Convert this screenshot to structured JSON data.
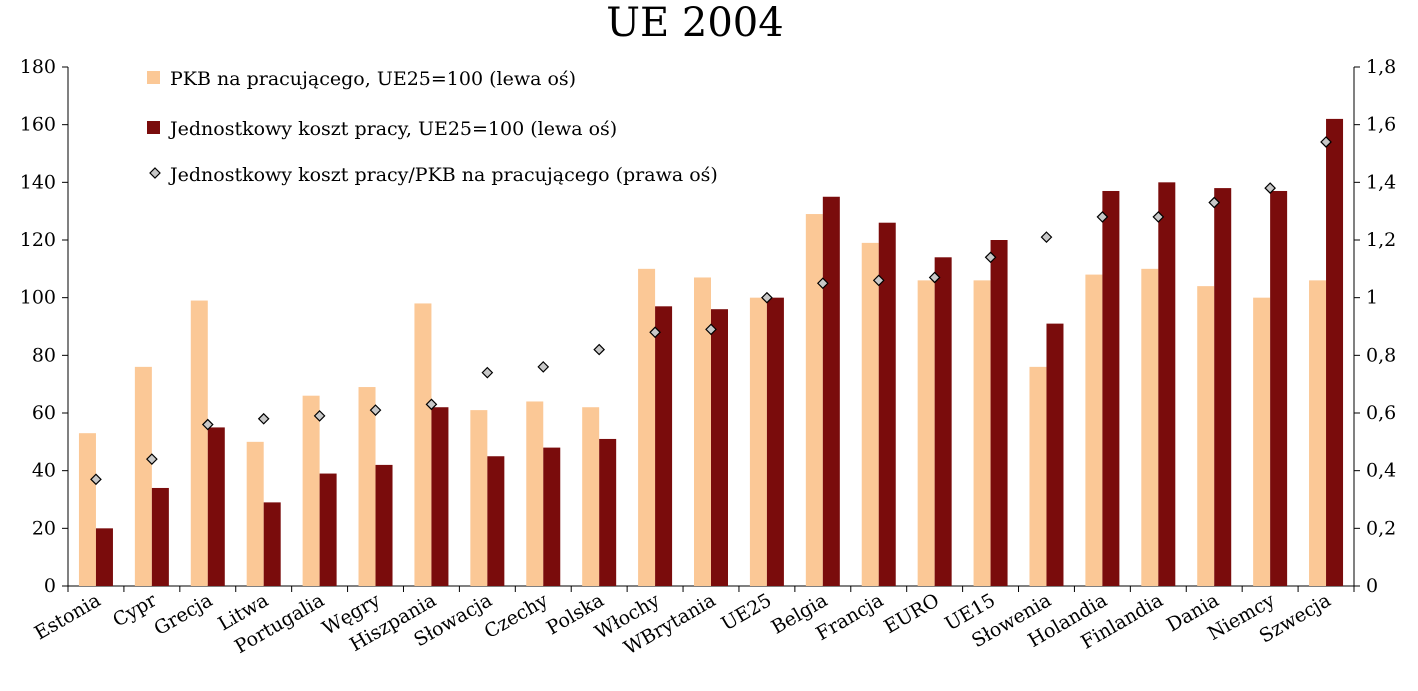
{
  "chart_data": {
    "type": "bar",
    "title": "UE 2004",
    "categories": [
      "Estonia",
      "Cypr",
      "Grecja",
      "Litwa",
      "Portugalia",
      "Węgry",
      "Hiszpania",
      "Słowacja",
      "Czechy",
      "Polska",
      "Włochy",
      "WBrytania",
      "UE25",
      "Belgia",
      "Francja",
      "EURO",
      "UE15",
      "Słowenia",
      "Holandia",
      "Finlandia",
      "Dania",
      "Niemcy",
      "Szwecja"
    ],
    "series": [
      {
        "name": "PKB na pracującego, UE25=100 (lewa oś)",
        "axis": "left",
        "color": "#fbc896",
        "values": [
          53,
          76,
          99,
          50,
          66,
          69,
          98,
          61,
          64,
          62,
          110,
          107,
          100,
          129,
          119,
          106,
          106,
          76,
          108,
          110,
          104,
          100,
          106
        ]
      },
      {
        "name": "Jednostkowy koszt pracy, UE25=100 (lewa oś)",
        "axis": "left",
        "color": "#7a0c0c",
        "values": [
          20,
          34,
          55,
          29,
          39,
          42,
          62,
          45,
          48,
          51,
          97,
          96,
          100,
          135,
          126,
          114,
          120,
          91,
          137,
          140,
          138,
          137,
          162
        ]
      },
      {
        "name": "Jednostkowy koszt pracy/PKB na pracującego (prawa oś)",
        "axis": "right",
        "marker": "diamond",
        "values": [
          0.37,
          0.44,
          0.56,
          0.58,
          0.59,
          0.61,
          0.63,
          0.74,
          0.76,
          0.82,
          0.88,
          0.89,
          1.0,
          1.05,
          1.06,
          1.07,
          1.14,
          1.21,
          1.28,
          1.28,
          1.33,
          1.38,
          1.54
        ]
      }
    ],
    "left_axis": {
      "min": 0,
      "max": 180,
      "step": 20,
      "tick_labels": [
        "0",
        "20",
        "40",
        "60",
        "80",
        "100",
        "120",
        "140",
        "160",
        "180"
      ]
    },
    "right_axis": {
      "min": 0,
      "max": 1.8,
      "step": 0.2,
      "tick_labels": [
        "0",
        "0,2",
        "0,4",
        "0,6",
        "0,8",
        "1",
        "1,2",
        "1,4",
        "1,6",
        "1,8"
      ]
    },
    "legend_placement": "top-left",
    "grid": false
  }
}
